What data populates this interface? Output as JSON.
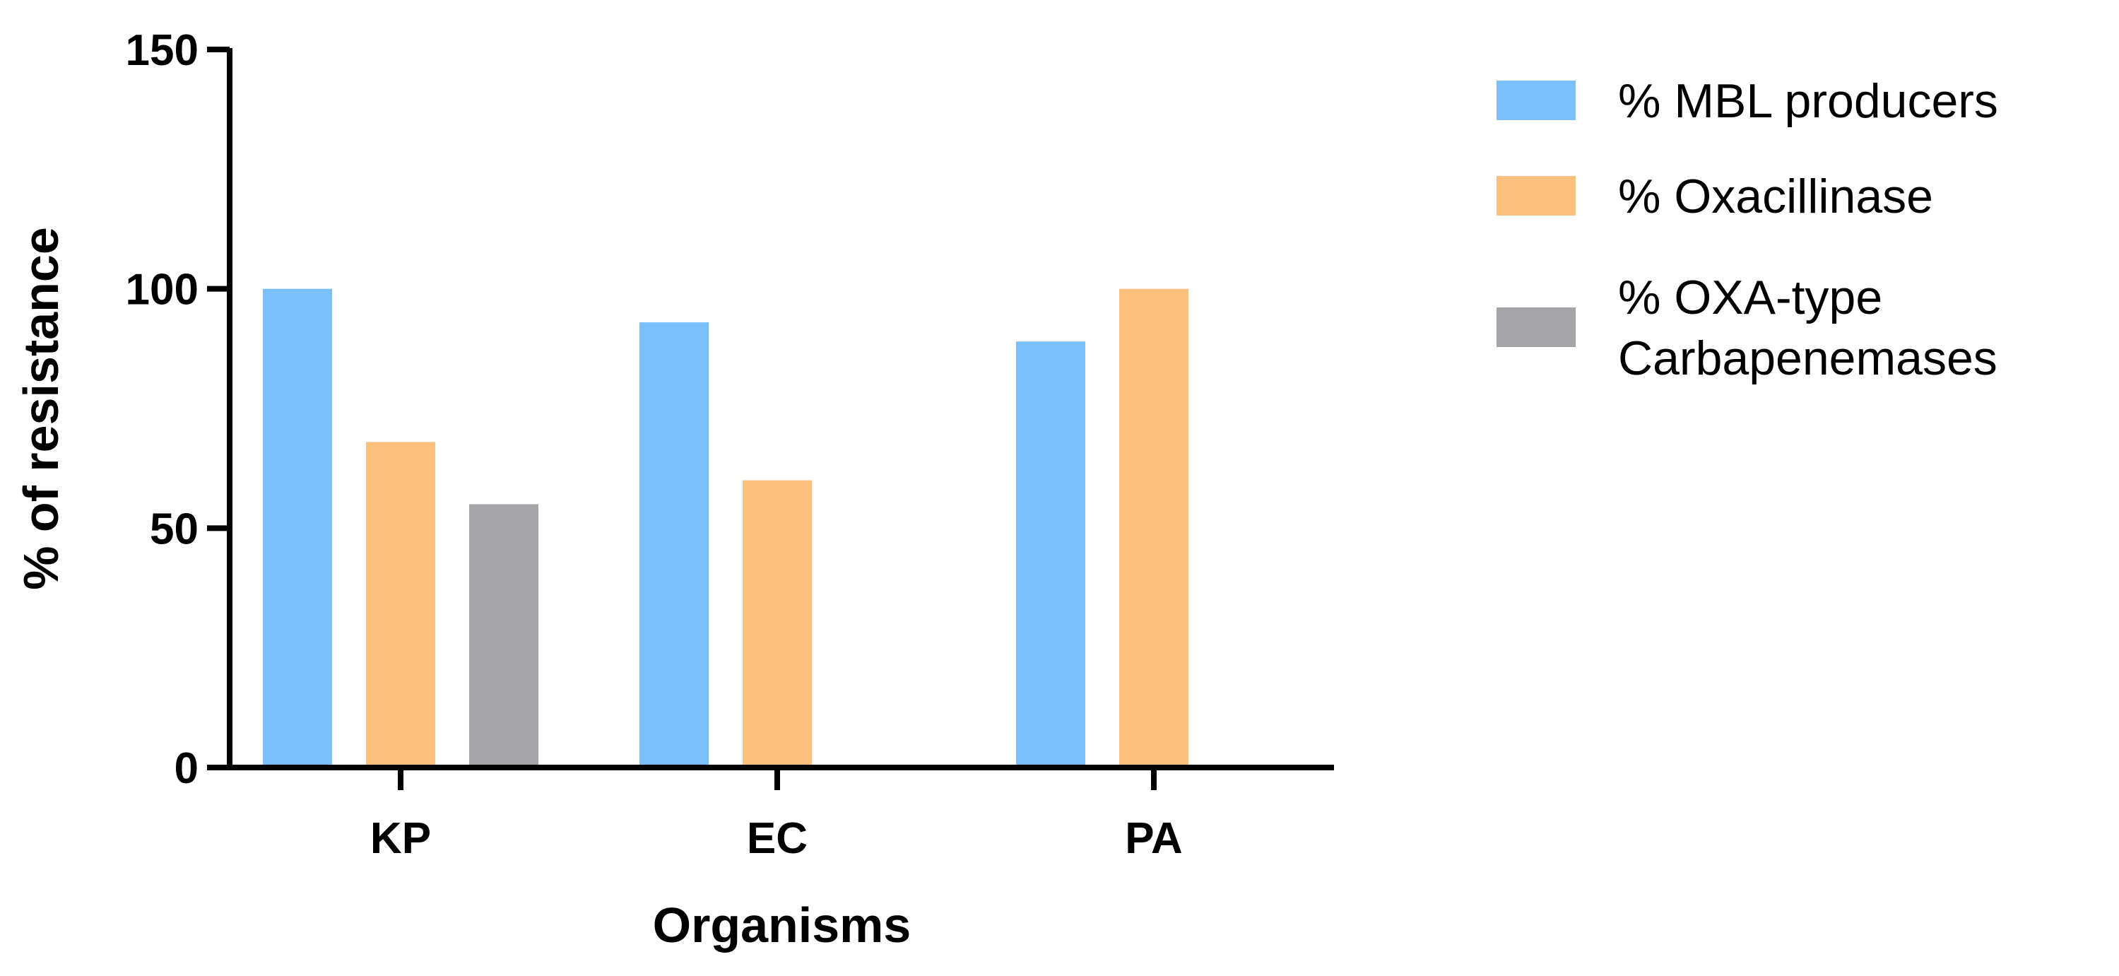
{
  "chart_data": {
    "type": "bar",
    "categories": [
      "KP",
      "EC",
      "PA"
    ],
    "series": [
      {
        "name": "% MBL producers",
        "values": [
          100,
          93,
          89
        ],
        "color": "#7bbffb"
      },
      {
        "name": "% Oxacillinase",
        "values": [
          68,
          60,
          100
        ],
        "color": "#fdc07f"
      },
      {
        "name": "% OXA-type Carbapenemases",
        "name_lines": [
          "% OXA-type",
          "Carbapenemases"
        ],
        "values": [
          55,
          null,
          null
        ],
        "color": "#a5a4a8"
      }
    ],
    "title": "",
    "xlabel": "Organisms",
    "ylabel": "% of resistance",
    "ylim": [
      0,
      150
    ],
    "yticks": [
      0,
      50,
      100,
      150
    ],
    "grid": false,
    "legend_position": "top-right"
  }
}
